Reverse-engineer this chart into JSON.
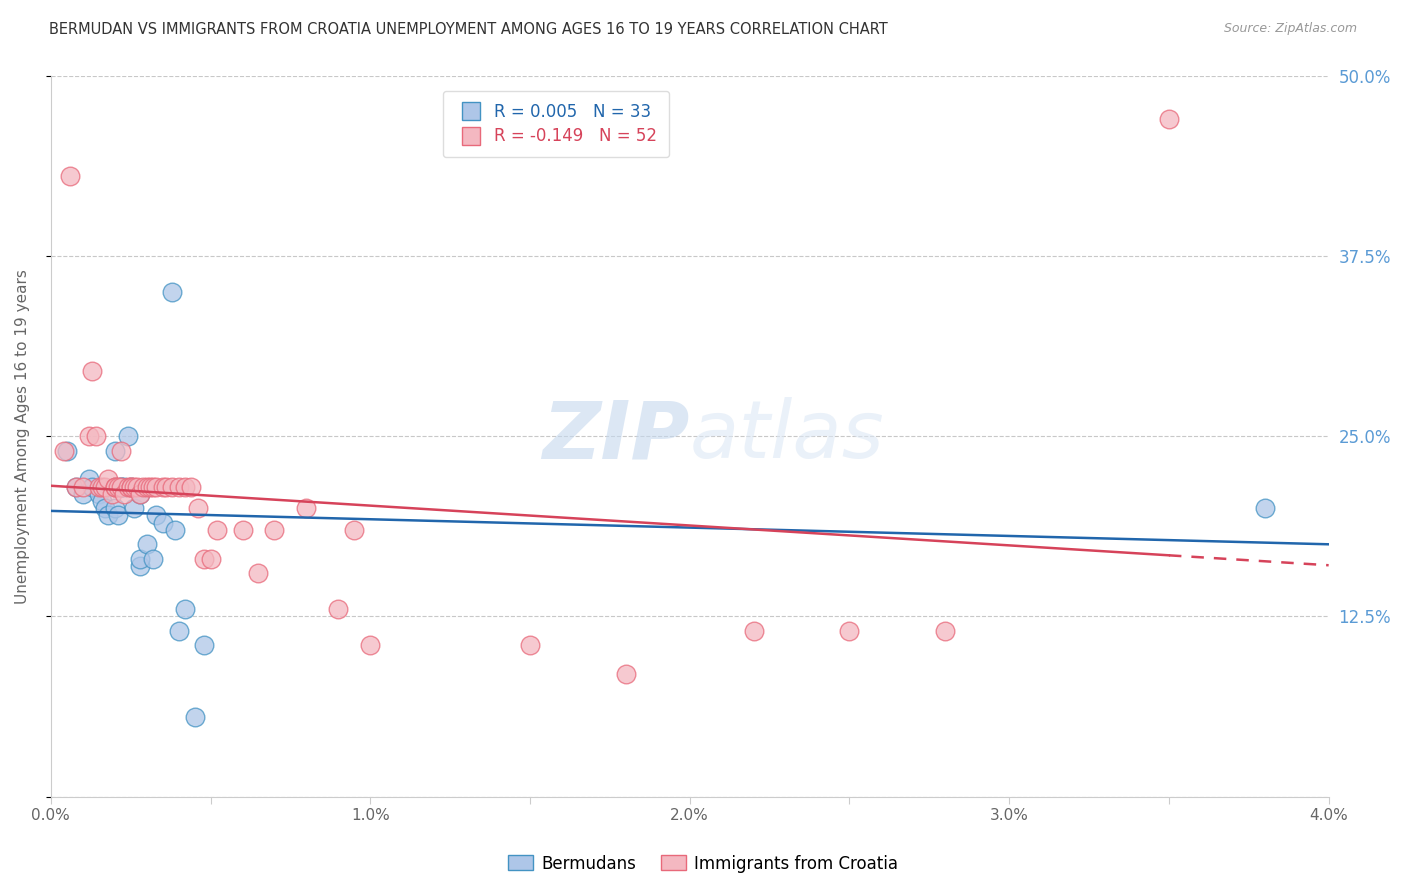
{
  "title": "BERMUDAN VS IMMIGRANTS FROM CROATIA UNEMPLOYMENT AMONG AGES 16 TO 19 YEARS CORRELATION CHART",
  "source": "Source: ZipAtlas.com",
  "ylabel": "Unemployment Among Ages 16 to 19 years",
  "xlim": [
    0.0,
    0.04
  ],
  "ylim": [
    0.0,
    0.5
  ],
  "yticks": [
    0.0,
    0.125,
    0.25,
    0.375,
    0.5
  ],
  "ytick_labels": [
    "",
    "12.5%",
    "25.0%",
    "37.5%",
    "50.0%"
  ],
  "xticks": [
    0.0,
    0.005,
    0.01,
    0.015,
    0.02,
    0.025,
    0.03,
    0.035,
    0.04
  ],
  "xtick_labels": [
    "0.0%",
    "",
    "1.0%",
    "",
    "2.0%",
    "",
    "3.0%",
    "",
    "4.0%"
  ],
  "legend1_r": "0.005",
  "legend1_n": "33",
  "legend2_r": "-0.149",
  "legend2_n": "52",
  "legend_label1": "Bermudans",
  "legend_label2": "Immigrants from Croatia",
  "color_blue_fill": "#aec6e8",
  "color_pink_fill": "#f4b8c1",
  "color_blue_edge": "#4393c3",
  "color_pink_edge": "#e8697a",
  "color_blue_line": "#2166ac",
  "color_pink_line": "#d6435a",
  "color_grid": "#c8c8c8",
  "color_right_axis": "#5b9bd5",
  "watermark_color": "#ddeeff",
  "bermudans_x": [
    0.0005,
    0.0008,
    0.001,
    0.0012,
    0.0013,
    0.0015,
    0.0016,
    0.0017,
    0.0018,
    0.002,
    0.002,
    0.002,
    0.0021,
    0.0022,
    0.0022,
    0.0023,
    0.0024,
    0.0025,
    0.0026,
    0.0028,
    0.0028,
    0.0028,
    0.003,
    0.0032,
    0.0033,
    0.0035,
    0.0038,
    0.0039,
    0.004,
    0.0042,
    0.0045,
    0.0048,
    0.038
  ],
  "bermudans_y": [
    0.24,
    0.215,
    0.21,
    0.22,
    0.215,
    0.21,
    0.205,
    0.2,
    0.195,
    0.24,
    0.2,
    0.215,
    0.195,
    0.215,
    0.215,
    0.215,
    0.25,
    0.215,
    0.2,
    0.16,
    0.21,
    0.165,
    0.175,
    0.165,
    0.195,
    0.19,
    0.35,
    0.185,
    0.115,
    0.13,
    0.055,
    0.105,
    0.2
  ],
  "croatia_x": [
    0.0004,
    0.0006,
    0.0008,
    0.001,
    0.0012,
    0.0013,
    0.0014,
    0.0015,
    0.0016,
    0.0017,
    0.0018,
    0.0019,
    0.002,
    0.002,
    0.0021,
    0.0022,
    0.0022,
    0.0023,
    0.0024,
    0.0025,
    0.0025,
    0.0026,
    0.0027,
    0.0028,
    0.0029,
    0.003,
    0.0031,
    0.0032,
    0.0033,
    0.0035,
    0.0036,
    0.0038,
    0.004,
    0.0042,
    0.0044,
    0.0046,
    0.0048,
    0.005,
    0.0052,
    0.006,
    0.0065,
    0.007,
    0.008,
    0.009,
    0.0095,
    0.01,
    0.015,
    0.018,
    0.022,
    0.025,
    0.028,
    0.035
  ],
  "croatia_y": [
    0.24,
    0.43,
    0.215,
    0.215,
    0.25,
    0.295,
    0.25,
    0.215,
    0.215,
    0.215,
    0.22,
    0.21,
    0.215,
    0.215,
    0.215,
    0.215,
    0.24,
    0.21,
    0.215,
    0.215,
    0.215,
    0.215,
    0.215,
    0.21,
    0.215,
    0.215,
    0.215,
    0.215,
    0.215,
    0.215,
    0.215,
    0.215,
    0.215,
    0.215,
    0.215,
    0.2,
    0.165,
    0.165,
    0.185,
    0.185,
    0.155,
    0.185,
    0.2,
    0.13,
    0.185,
    0.105,
    0.105,
    0.085,
    0.115,
    0.115,
    0.115,
    0.47
  ]
}
